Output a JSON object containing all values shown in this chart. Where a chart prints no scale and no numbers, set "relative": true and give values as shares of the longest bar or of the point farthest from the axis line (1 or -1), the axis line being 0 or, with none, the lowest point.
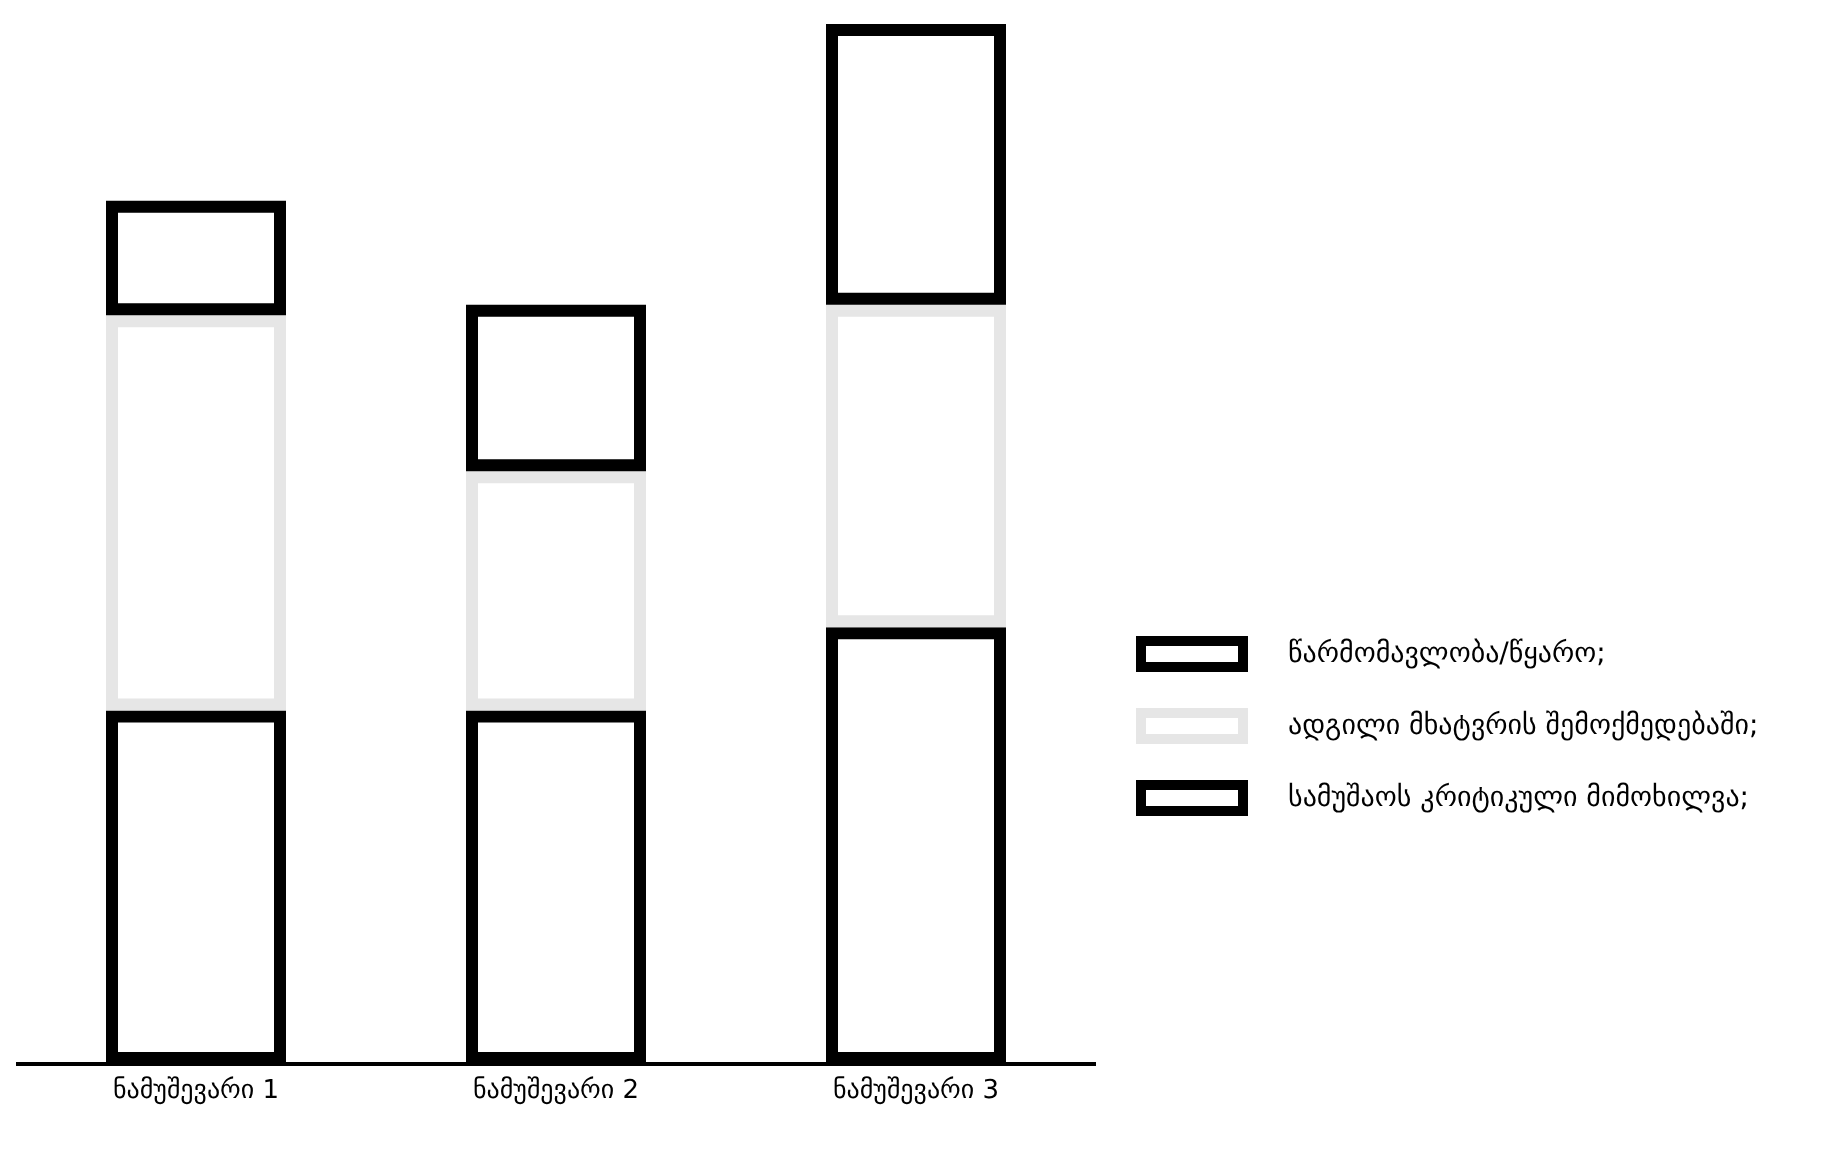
{
  "chart_data": {
    "type": "bar",
    "stacked": true,
    "relative": true,
    "legend": "right",
    "categories": [
      "ნამუშევარი 1",
      "ნამუშევარი 2",
      "ნამუშევარი 3"
    ],
    "series": [
      {
        "name": "წარმომავლობა/წყარო;",
        "color": "#000000",
        "values": [
          0.34,
          0.34,
          0.42
        ]
      },
      {
        "name": "ადგილი მხატვრის შემოქმედებაში;",
        "color": "#e6e6e6",
        "values": [
          0.38,
          0.23,
          0.31
        ]
      },
      {
        "name": "სამუშაოს კრიტიკული მიმოხილვა;",
        "color": "#000000",
        "values": [
          0.11,
          0.16,
          0.27
        ]
      }
    ]
  }
}
